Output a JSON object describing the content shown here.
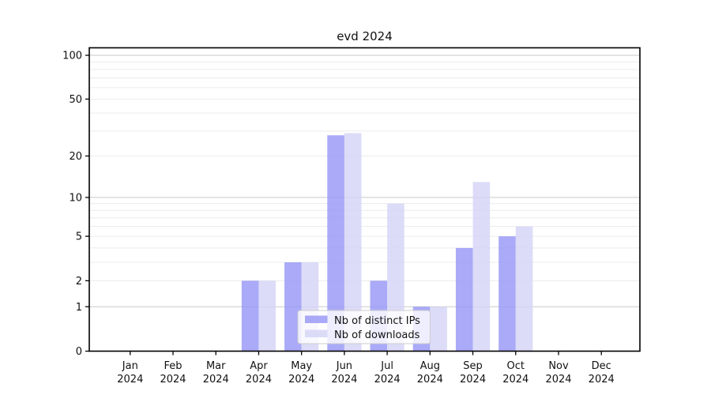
{
  "title": "evd 2024",
  "chart_data": {
    "type": "bar",
    "title": "evd 2024",
    "scale": "log1p",
    "grid": true,
    "legend_position": "bottom-center",
    "year": "2024",
    "categories": [
      "Jan",
      "Feb",
      "Mar",
      "Apr",
      "May",
      "Jun",
      "Jul",
      "Aug",
      "Sep",
      "Oct",
      "Nov",
      "Dec"
    ],
    "series": [
      {
        "name": "Nb of distinct IPs",
        "color": "#9797f7",
        "opacity": 0.82,
        "values": [
          0,
          0,
          0,
          2,
          3,
          28,
          2,
          1,
          4,
          5,
          0,
          0
        ]
      },
      {
        "name": "Nb of downloads",
        "color": "#d4d4f6",
        "opacity": 0.82,
        "values": [
          0,
          0,
          0,
          2,
          3,
          29,
          9,
          1,
          13,
          6,
          0,
          0
        ]
      }
    ],
    "yticks": [
      0,
      1,
      2,
      5,
      10,
      20,
      50,
      100
    ],
    "minor_gridlines": [
      2,
      3,
      4,
      5,
      6,
      7,
      8,
      9,
      20,
      30,
      40,
      50,
      60,
      70,
      80,
      90
    ],
    "major_gridlines": [
      1,
      10,
      100
    ],
    "ylim": [
      0,
      113
    ],
    "colors": {
      "major_grid": "#c9c9c9",
      "minor_grid": "#ececec",
      "axis": "#000000",
      "legend_border": "#cccccc",
      "legend_bg": "#ffffff"
    }
  }
}
